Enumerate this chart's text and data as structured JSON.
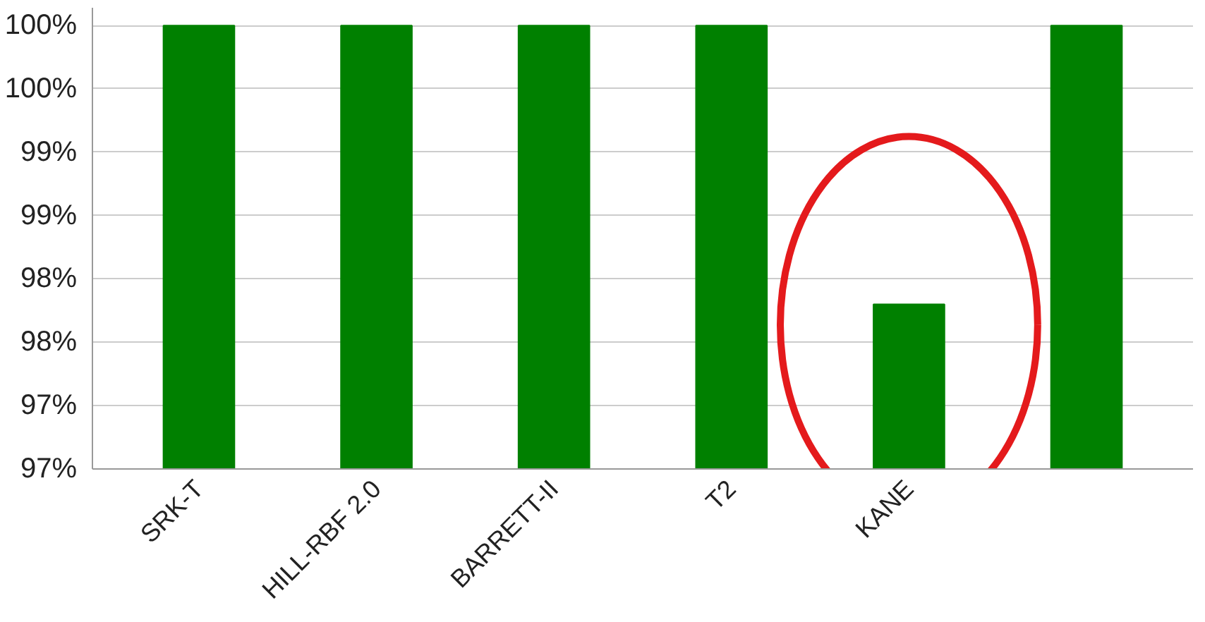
{
  "chart_data": {
    "type": "bar",
    "categories": [
      "SRK-T",
      "HILL-RBF 2.0",
      "BARRETT-II",
      "T2",
      "KANE",
      null
    ],
    "values": [
      100,
      100,
      100,
      100,
      97.8,
      100
    ],
    "color": "#008000",
    "ylim": [
      96.5,
      100
    ],
    "yticks": [
      {
        "value": 96.5,
        "label": "97%"
      },
      {
        "value": 97,
        "label": "97%"
      },
      {
        "value": 97.5,
        "label": "98%"
      },
      {
        "value": 98,
        "label": "98%"
      },
      {
        "value": 98.5,
        "label": "99%"
      },
      {
        "value": 99,
        "label": "99%"
      },
      {
        "value": 99.5,
        "label": "100%"
      },
      {
        "value": 100,
        "label": "100%"
      }
    ],
    "grid": "y"
  }
}
